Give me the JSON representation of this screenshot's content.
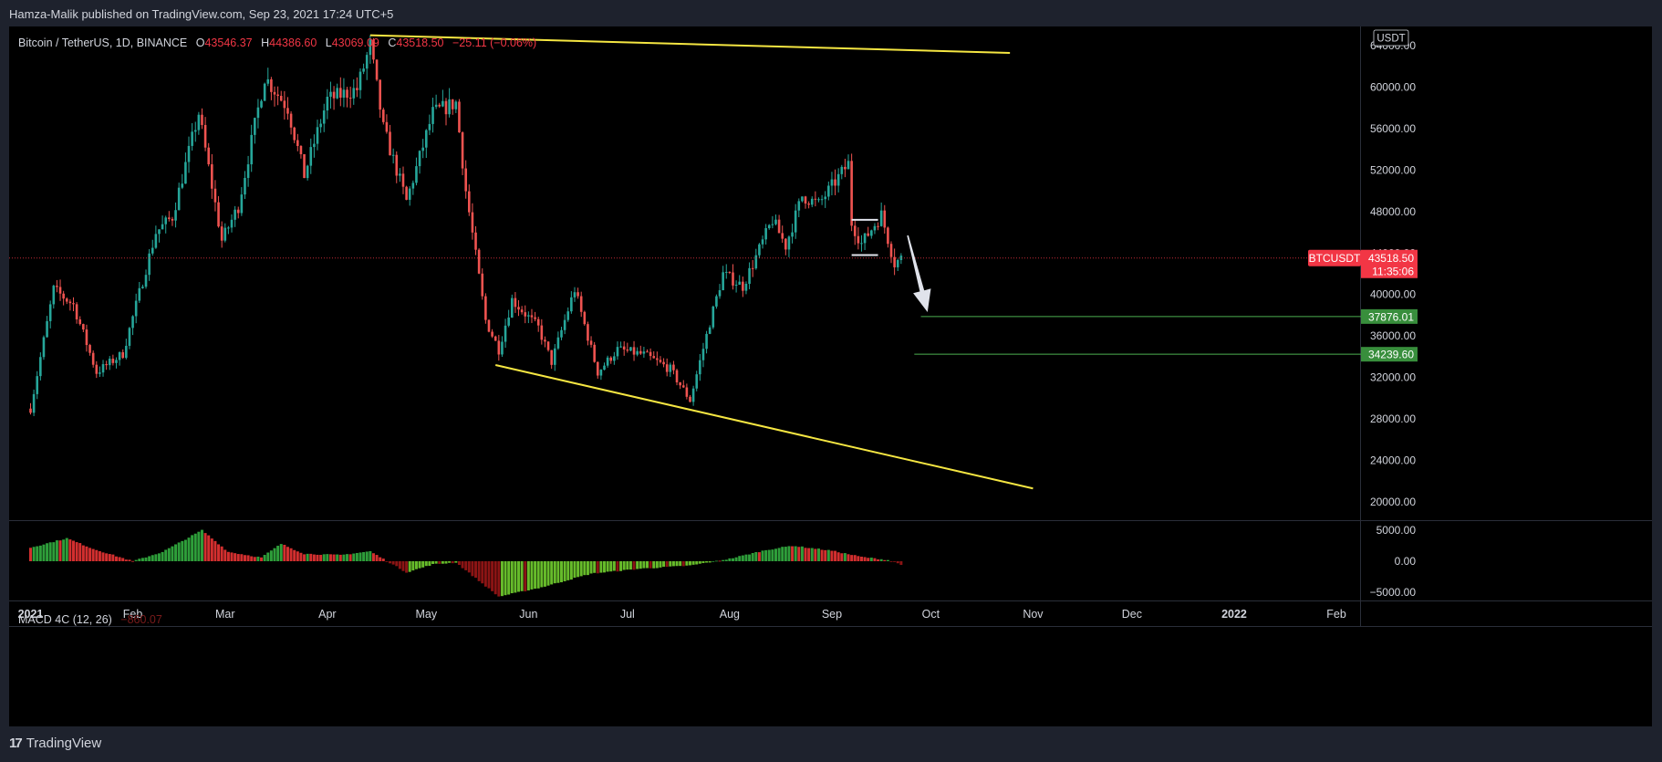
{
  "header": {
    "published": "Hamza-Malik published on TradingView.com, Sep 23, 2021 17:24 UTC+5"
  },
  "legend": {
    "symbol": "Bitcoin / TetherUS, 1D, BINANCE",
    "o_label": "O",
    "o_value": "43546.37",
    "h_label": "H",
    "h_value": "44386.60",
    "l_label": "L",
    "l_value": "43069.09",
    "c_label": "C",
    "c_value": "43518.50",
    "change": "−25.11 (−0.06%)"
  },
  "macd": {
    "name": "MACD 4C (12, 26)",
    "value": "−860.07"
  },
  "footer": {
    "brand": "TradingView"
  },
  "colors": {
    "up": "#26a69a",
    "down": "#ef5350",
    "trend": "#f5e642",
    "level": "#4caf50",
    "price": "#f23645",
    "bg": "#000000"
  },
  "chart_data": {
    "type": "candlestick",
    "currency_badge": "USDT",
    "price_axis": {
      "ticks": [
        "64000.00",
        "60000.00",
        "56000.00",
        "52000.00",
        "48000.00",
        "44000.00",
        "40000.00",
        "36000.00",
        "32000.00",
        "28000.00",
        "24000.00",
        "20000.00"
      ],
      "range": [
        19000,
        66500
      ]
    },
    "time_axis": {
      "labels": [
        "2021",
        "Feb",
        "Mar",
        "Apr",
        "May",
        "Jun",
        "Jul",
        "Aug",
        "Sep",
        "Oct",
        "Nov",
        "Dec",
        "2022",
        "Feb"
      ]
    },
    "price_label": {
      "symbol": "BTCUSDT",
      "value": "43518.50",
      "countdown": "11:35:06",
      "price": 43518.5
    },
    "levels": [
      {
        "label": "37876.01",
        "price": 37876.01
      },
      {
        "label": "34239.60",
        "price": 34239.6
      }
    ],
    "trendlines": [
      {
        "from": [
          "2021-04-14",
          65000
        ],
        "to": [
          "2021-10-25",
          63300
        ]
      },
      {
        "from": [
          "2021-05-22",
          33200
        ],
        "to": [
          "2021-11-01",
          21300
        ]
      }
    ],
    "arrow": {
      "from": [
        "2021-09-24",
        45700
      ],
      "to": [
        "2021-09-30",
        38300
      ]
    },
    "box": {
      "from": [
        "2021-09-07",
        47200
      ],
      "to": [
        "2021-09-15",
        43800
      ]
    },
    "macd_axis": {
      "ticks": [
        "5000.00",
        "0.00",
        "−5000.00"
      ],
      "range": [
        -6500,
        6500
      ]
    },
    "anchors": [
      [
        "2021-01-01",
        29000
      ],
      [
        "2021-01-08",
        40500
      ],
      [
        "2021-01-14",
        39000
      ],
      [
        "2021-01-21",
        32500
      ],
      [
        "2021-01-29",
        34300
      ],
      [
        "2021-02-08",
        46000
      ],
      [
        "2021-02-13",
        47500
      ],
      [
        "2021-02-21",
        57500
      ],
      [
        "2021-02-28",
        45200
      ],
      [
        "2021-03-05",
        48500
      ],
      [
        "2021-03-13",
        61000
      ],
      [
        "2021-03-20",
        58000
      ],
      [
        "2021-03-25",
        51500
      ],
      [
        "2021-04-01",
        58800
      ],
      [
        "2021-04-10",
        59800
      ],
      [
        "2021-04-14",
        64000
      ],
      [
        "2021-04-18",
        56000
      ],
      [
        "2021-04-25",
        49000
      ],
      [
        "2021-05-03",
        57500
      ],
      [
        "2021-05-10",
        58500
      ],
      [
        "2021-05-13",
        50000
      ],
      [
        "2021-05-19",
        37500
      ],
      [
        "2021-05-23",
        34700
      ],
      [
        "2021-05-27",
        39500
      ],
      [
        "2021-06-04",
        36800
      ],
      [
        "2021-06-08",
        33500
      ],
      [
        "2021-06-15",
        40500
      ],
      [
        "2021-06-22",
        32500
      ],
      [
        "2021-06-28",
        34700
      ],
      [
        "2021-07-06",
        34200
      ],
      [
        "2021-07-14",
        32800
      ],
      [
        "2021-07-20",
        29800
      ],
      [
        "2021-07-26",
        37300
      ],
      [
        "2021-07-30",
        42000
      ],
      [
        "2021-08-05",
        40800
      ],
      [
        "2021-08-14",
        47200
      ],
      [
        "2021-08-18",
        44700
      ],
      [
        "2021-08-23",
        49500
      ],
      [
        "2021-08-28",
        48700
      ],
      [
        "2021-09-06",
        52600
      ],
      [
        "2021-09-07",
        46900
      ],
      [
        "2021-09-10",
        44900
      ],
      [
        "2021-09-16",
        47700
      ],
      [
        "2021-09-20",
        43000
      ],
      [
        "2021-09-22",
        43500
      ]
    ],
    "macd_anchors": [
      [
        "2021-01-01",
        2200
      ],
      [
        "2021-01-12",
        3700
      ],
      [
        "2021-01-20",
        2000
      ],
      [
        "2021-02-01",
        0
      ],
      [
        "2021-02-10",
        1500
      ],
      [
        "2021-02-22",
        5000
      ],
      [
        "2021-03-02",
        1500
      ],
      [
        "2021-03-12",
        600
      ],
      [
        "2021-03-18",
        2800
      ],
      [
        "2021-03-25",
        1200
      ],
      [
        "2021-04-05",
        1000
      ],
      [
        "2021-04-14",
        1600
      ],
      [
        "2021-04-25",
        -1800
      ],
      [
        "2021-05-03",
        -500
      ],
      [
        "2021-05-10",
        -200
      ],
      [
        "2021-05-23",
        -5700
      ],
      [
        "2021-06-05",
        -4200
      ],
      [
        "2021-06-20",
        -2000
      ],
      [
        "2021-07-05",
        -1200
      ],
      [
        "2021-07-20",
        -700
      ],
      [
        "2021-08-01",
        400
      ],
      [
        "2021-08-12",
        1800
      ],
      [
        "2021-08-20",
        2500
      ],
      [
        "2021-09-01",
        1700
      ],
      [
        "2021-09-10",
        700
      ],
      [
        "2021-09-18",
        200
      ],
      [
        "2021-09-22",
        -500
      ]
    ]
  }
}
